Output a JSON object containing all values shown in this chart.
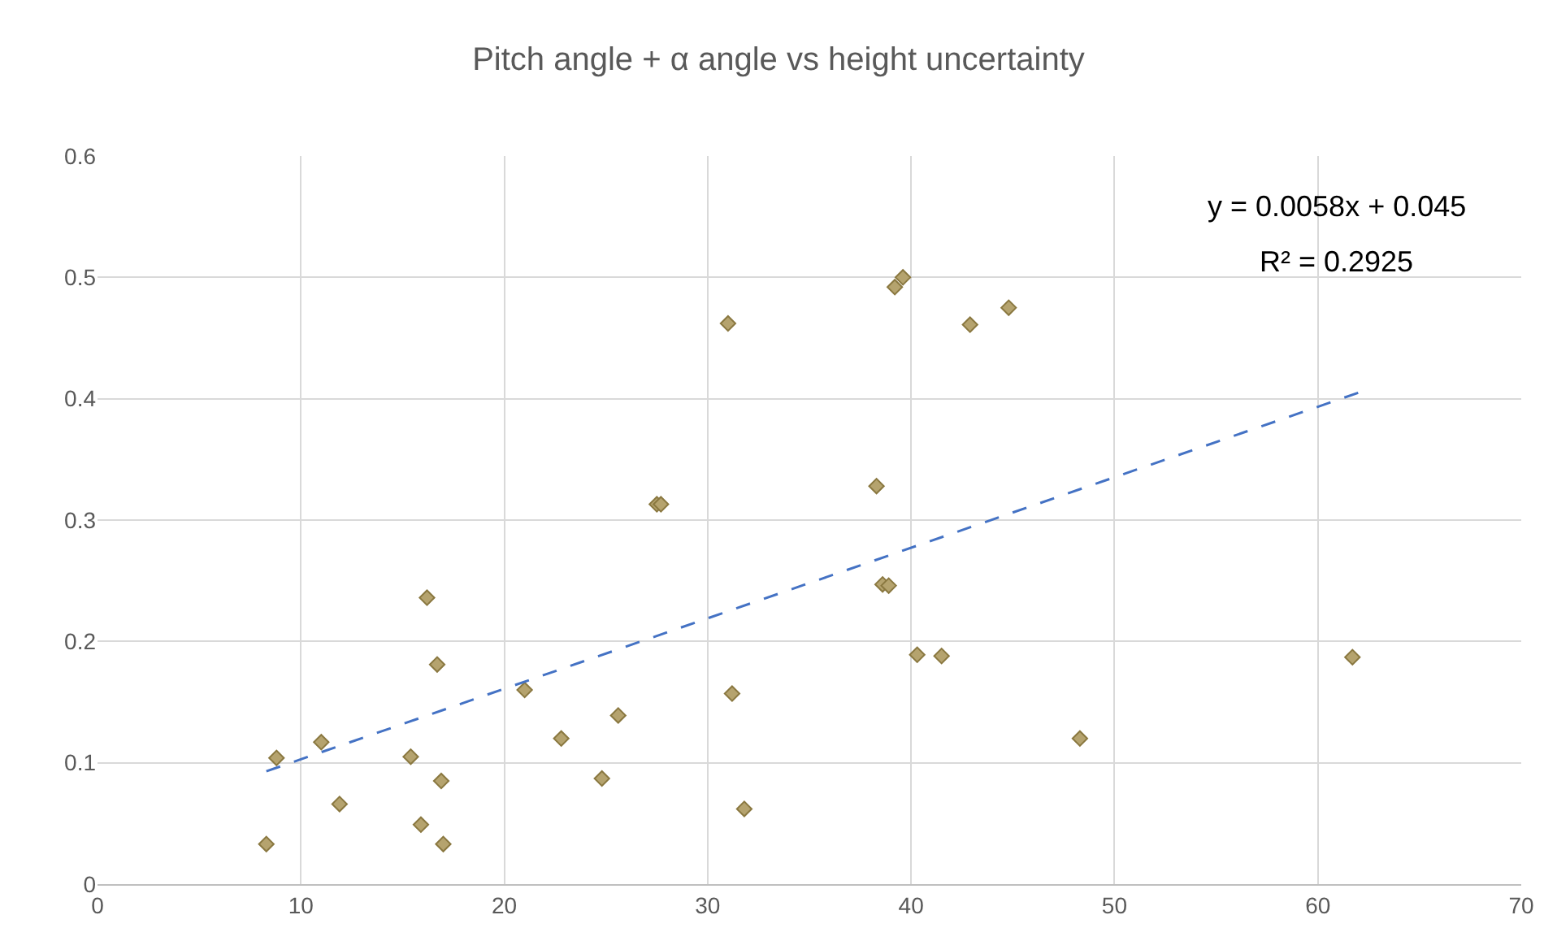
{
  "chart_data": {
    "type": "scatter",
    "title": "Pitch angle + α angle vs height uncertainty",
    "xlim": [
      0,
      70
    ],
    "xticks": [
      0,
      10,
      20,
      30,
      40,
      50,
      60,
      70
    ],
    "ylim": [
      0,
      0.6
    ],
    "yticks": [
      0,
      0.1,
      0.2,
      0.3,
      0.4,
      0.5,
      0.6
    ],
    "grid": true,
    "series": [
      {
        "marker": "diamond",
        "color": "#b5a36e",
        "x": [
          8.3,
          8.8,
          11.0,
          11.9,
          15.4,
          15.9,
          16.2,
          16.7,
          16.9,
          17.0,
          21.0,
          22.8,
          24.8,
          25.6,
          27.5,
          27.7,
          31.0,
          31.2,
          31.8,
          38.3,
          38.6,
          38.9,
          39.2,
          39.6,
          40.3,
          41.5,
          42.9,
          44.8,
          48.3,
          61.7
        ],
        "values": [
          0.033,
          0.104,
          0.117,
          0.066,
          0.105,
          0.049,
          0.236,
          0.181,
          0.085,
          0.033,
          0.16,
          0.12,
          0.087,
          0.139,
          0.313,
          0.313,
          0.462,
          0.157,
          0.062,
          0.328,
          0.247,
          0.246,
          0.492,
          0.5,
          0.189,
          0.188,
          0.461,
          0.475,
          0.12,
          0.187
        ]
      },
      {
        "type": "line",
        "color": "#4472c4",
        "line_style": "dashed",
        "x": [
          8.3,
          62
        ],
        "values": [
          0.093,
          0.405
        ]
      }
    ],
    "annotations": [
      "y = 0.0058x + 0.045",
      "R² = 0.2925"
    ]
  }
}
